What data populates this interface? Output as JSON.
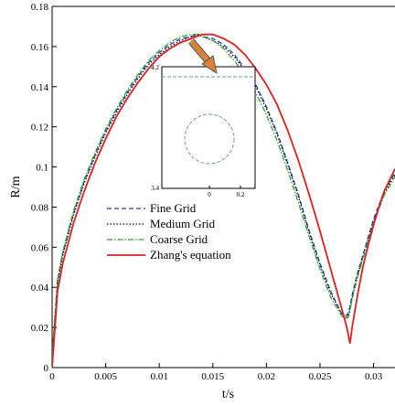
{
  "chart_data": {
    "type": "line",
    "xlabel": "t/s",
    "ylabel": "R/m",
    "xlim": [
      0,
      0.032
    ],
    "ylim": [
      0,
      0.18
    ],
    "xticks": [
      0,
      0.005,
      0.01,
      0.015,
      0.02,
      0.025,
      0.03
    ],
    "xtick_labels": [
      "0",
      "0.005",
      "0.01",
      "0.015",
      "0.02",
      "0.025",
      "0.03"
    ],
    "yticks": [
      0,
      0.02,
      0.04,
      0.06,
      0.08,
      0.1,
      0.12,
      0.14,
      0.16,
      0.18
    ],
    "ytick_labels": [
      "0",
      "0.02",
      "0.04",
      "0.06",
      "0.08",
      "0.1",
      "0.12",
      "0.14",
      "0.16",
      "0.18"
    ],
    "grid": false,
    "legend_position": "lower-left",
    "series": [
      {
        "name": "Fine Grid",
        "color": "#1f3fbf",
        "style": "dashed",
        "x": [
          0,
          0.0005,
          0.001,
          0.002,
          0.003,
          0.004,
          0.005,
          0.006,
          0.007,
          0.008,
          0.009,
          0.01,
          0.011,
          0.012,
          0.013,
          0.0137,
          0.014,
          0.015,
          0.016,
          0.017,
          0.018,
          0.019,
          0.02,
          0.021,
          0.022,
          0.023,
          0.024,
          0.025,
          0.026,
          0.027,
          0.0275,
          0.0277,
          0.028,
          0.0285,
          0.029,
          0.0295,
          0.03,
          0.0305,
          0.031,
          0.032
        ],
        "y": [
          0.005,
          0.043,
          0.057,
          0.077,
          0.093,
          0.106,
          0.118,
          0.128,
          0.137,
          0.145,
          0.152,
          0.157,
          0.161,
          0.164,
          0.165,
          0.166,
          0.165,
          0.164,
          0.161,
          0.156,
          0.149,
          0.141,
          0.13,
          0.117,
          0.102,
          0.086,
          0.068,
          0.052,
          0.038,
          0.027,
          0.026,
          0.028,
          0.036,
          0.047,
          0.056,
          0.065,
          0.074,
          0.081,
          0.088,
          0.097
        ]
      },
      {
        "name": "Medium Grid",
        "color": "#111111",
        "style": "dotted",
        "x": [
          0,
          0.0005,
          0.001,
          0.002,
          0.003,
          0.004,
          0.005,
          0.006,
          0.007,
          0.008,
          0.009,
          0.01,
          0.011,
          0.012,
          0.013,
          0.0137,
          0.014,
          0.015,
          0.016,
          0.017,
          0.018,
          0.019,
          0.02,
          0.021,
          0.022,
          0.023,
          0.024,
          0.025,
          0.026,
          0.027,
          0.0275,
          0.0277,
          0.028,
          0.0285,
          0.029,
          0.0295,
          0.03,
          0.0305,
          0.031,
          0.032
        ],
        "y": [
          0.005,
          0.042,
          0.056,
          0.076,
          0.092,
          0.105,
          0.117,
          0.127,
          0.136,
          0.144,
          0.151,
          0.156,
          0.16,
          0.163,
          0.165,
          0.166,
          0.165,
          0.163,
          0.16,
          0.155,
          0.148,
          0.14,
          0.129,
          0.116,
          0.101,
          0.085,
          0.067,
          0.051,
          0.037,
          0.027,
          0.025,
          0.027,
          0.035,
          0.046,
          0.055,
          0.064,
          0.073,
          0.08,
          0.087,
          0.096
        ]
      },
      {
        "name": "Coarse Grid",
        "color": "#2ea82e",
        "style": "dashdot",
        "x": [
          0,
          0.0005,
          0.001,
          0.002,
          0.003,
          0.004,
          0.005,
          0.006,
          0.007,
          0.008,
          0.009,
          0.01,
          0.011,
          0.012,
          0.013,
          0.0137,
          0.014,
          0.015,
          0.016,
          0.017,
          0.018,
          0.019,
          0.02,
          0.021,
          0.022,
          0.023,
          0.024,
          0.025,
          0.026,
          0.027,
          0.0275,
          0.0277,
          0.028,
          0.0285,
          0.029,
          0.0295,
          0.03,
          0.0305,
          0.031,
          0.032
        ],
        "y": [
          0.006,
          0.044,
          0.058,
          0.078,
          0.094,
          0.107,
          0.119,
          0.129,
          0.138,
          0.146,
          0.153,
          0.158,
          0.162,
          0.165,
          0.166,
          0.166,
          0.165,
          0.163,
          0.159,
          0.153,
          0.146,
          0.137,
          0.126,
          0.113,
          0.098,
          0.082,
          0.065,
          0.049,
          0.035,
          0.026,
          0.024,
          0.026,
          0.034,
          0.045,
          0.054,
          0.063,
          0.072,
          0.079,
          0.086,
          0.095
        ]
      },
      {
        "name": "Zhang's equation",
        "color": "#e02020",
        "style": "solid",
        "x": [
          0,
          0.0005,
          0.001,
          0.002,
          0.003,
          0.004,
          0.005,
          0.006,
          0.007,
          0.008,
          0.009,
          0.01,
          0.011,
          0.012,
          0.013,
          0.014,
          0.0145,
          0.015,
          0.016,
          0.017,
          0.018,
          0.019,
          0.02,
          0.021,
          0.022,
          0.023,
          0.024,
          0.025,
          0.026,
          0.027,
          0.0275,
          0.0278,
          0.028,
          0.0285,
          0.029,
          0.0295,
          0.03,
          0.0305,
          0.031,
          0.032
        ],
        "y": [
          0.0,
          0.038,
          0.052,
          0.072,
          0.088,
          0.102,
          0.114,
          0.125,
          0.134,
          0.142,
          0.149,
          0.155,
          0.159,
          0.162,
          0.164,
          0.166,
          0.166,
          0.166,
          0.164,
          0.161,
          0.156,
          0.149,
          0.141,
          0.131,
          0.118,
          0.103,
          0.086,
          0.068,
          0.049,
          0.03,
          0.02,
          0.012,
          0.02,
          0.036,
          0.05,
          0.061,
          0.071,
          0.08,
          0.088,
          0.099
        ]
      }
    ],
    "inset": {
      "ytick_labels": [
        "4.2",
        "3.4"
      ],
      "xtick_labels": [
        "0",
        "0.2"
      ],
      "line_color": "#7a9aa8",
      "circle_color": "#7a9aa8"
    },
    "arrow_color": "#d98238"
  }
}
